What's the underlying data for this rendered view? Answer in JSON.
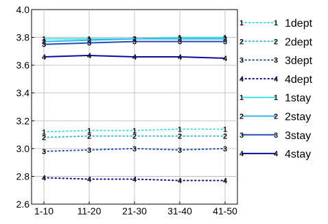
{
  "chart_data": {
    "type": "line",
    "title": "",
    "xlabel": "",
    "ylabel": "",
    "categories": [
      "1-10",
      "11-20",
      "21-30",
      "31-40",
      "41-50"
    ],
    "ylim": [
      2.6,
      4.0
    ],
    "yticks": [
      "2.6",
      "2.8",
      "3.0",
      "3.2",
      "3.4",
      "3.6",
      "3.8",
      "4.0"
    ],
    "grid": true,
    "legend_position": "right-outside",
    "series": [
      {
        "name": "1dept",
        "marker": "1",
        "style": "dotted",
        "color": "#40e0e0",
        "values": [
          3.12,
          3.13,
          3.13,
          3.14,
          3.14
        ]
      },
      {
        "name": "2dept",
        "marker": "2",
        "style": "dotted",
        "color": "#33b5e5",
        "values": [
          3.08,
          3.09,
          3.09,
          3.09,
          3.09
        ]
      },
      {
        "name": "3dept",
        "marker": "3",
        "style": "dotted",
        "color": "#1f4fb4",
        "values": [
          2.98,
          2.99,
          3.0,
          2.99,
          3.0
        ]
      },
      {
        "name": "4dept",
        "marker": "4",
        "style": "dotted",
        "color": "#0a0a9e",
        "values": [
          2.79,
          2.78,
          2.78,
          2.77,
          2.77
        ]
      },
      {
        "name": "1stay",
        "marker": "1",
        "style": "solid",
        "color": "#40e0e0",
        "values": [
          3.79,
          3.79,
          3.79,
          3.8,
          3.8
        ]
      },
      {
        "name": "2stay",
        "marker": "2",
        "style": "solid",
        "color": "#33b5e5",
        "values": [
          3.77,
          3.78,
          3.79,
          3.79,
          3.79
        ]
      },
      {
        "name": "3stay",
        "marker": "3",
        "style": "solid",
        "color": "#1f4fb4",
        "values": [
          3.75,
          3.76,
          3.77,
          3.77,
          3.77
        ]
      },
      {
        "name": "4stay",
        "marker": "4",
        "style": "solid",
        "color": "#0a0a9e",
        "values": [
          3.66,
          3.67,
          3.66,
          3.66,
          3.65
        ]
      }
    ]
  }
}
